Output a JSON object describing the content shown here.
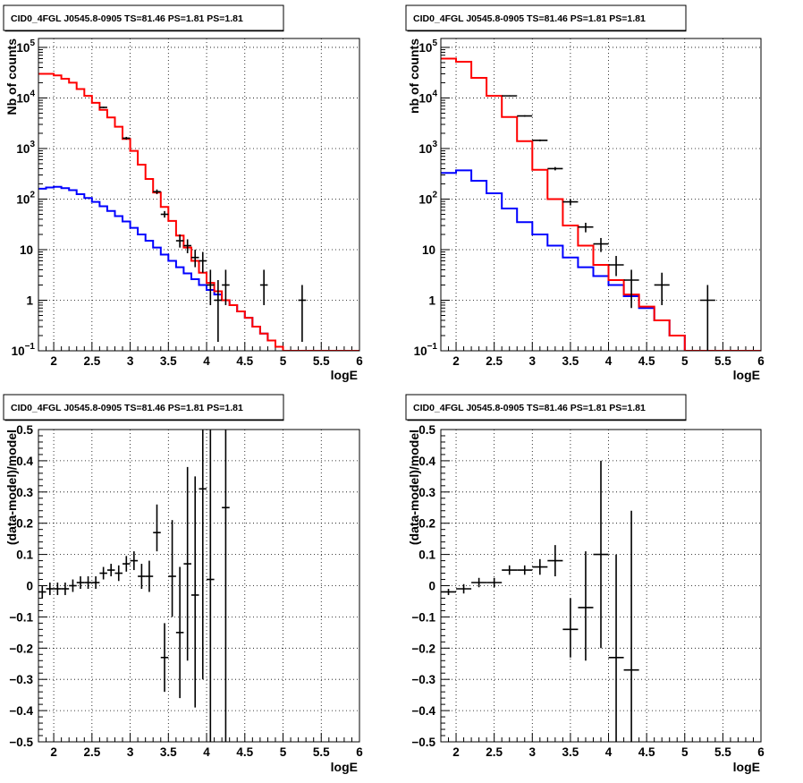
{
  "chart_data": [
    {
      "type": "line",
      "title": "CID0_4FGL J0545.8-0905 TS=81.46 PS=1.81 PS=1.81",
      "xlabel": "logE",
      "ylabel": "Nb of counts",
      "xlim": [
        1.8,
        6.0
      ],
      "ylim": [
        0.1,
        150000
      ],
      "yscale": "log",
      "grid": true,
      "x_ticks": [
        "2",
        "2.5",
        "3",
        "3.5",
        "4",
        "4.5",
        "5",
        "5.5",
        "6"
      ],
      "y_ticks": [
        {
          "value": 0.1,
          "base": "10",
          "exp": "−1"
        },
        {
          "value": 1,
          "label": "1"
        },
        {
          "value": 10,
          "label": "10"
        },
        {
          "value": 100,
          "base": "10",
          "exp": "2"
        },
        {
          "value": 1000,
          "base": "10",
          "exp": "3"
        },
        {
          "value": 10000,
          "base": "10",
          "exp": "4"
        },
        {
          "value": 100000,
          "base": "10",
          "exp": "5"
        }
      ],
      "bin_edges": [
        1.8,
        1.9,
        2.0,
        2.1,
        2.2,
        2.3,
        2.4,
        2.5,
        2.6,
        2.7,
        2.8,
        2.9,
        3.0,
        3.1,
        3.2,
        3.3,
        3.4,
        3.5,
        3.6,
        3.7,
        3.8,
        3.9,
        4.0,
        4.1,
        4.2,
        4.3,
        4.4,
        4.5,
        4.6,
        4.7,
        4.8,
        4.9,
        5.0,
        5.1,
        5.2,
        5.3,
        5.4,
        5.5,
        5.6,
        5.7,
        5.8,
        5.9,
        6.0
      ],
      "series": [
        {
          "role": "model_total",
          "color": "#ff0000",
          "values": [
            30000,
            30000,
            28000,
            24000,
            20000,
            15000,
            11000,
            8000,
            5800,
            4100,
            2700,
            1550,
            900,
            480,
            250,
            135,
            70,
            37,
            19,
            11,
            6,
            3.5,
            2.2,
            1.5,
            1.0,
            0.8,
            0.6,
            0.45,
            0.3,
            0.22,
            0.16,
            0.12,
            0.1,
            0.1,
            0.1,
            0.1,
            0.1,
            0.1,
            0.1,
            0.1,
            0.1,
            0.1
          ]
        },
        {
          "role": "model_component",
          "color": "#0000ff",
          "values": [
            160,
            170,
            175,
            165,
            150,
            125,
            105,
            88,
            72,
            58,
            46,
            36,
            27,
            20,
            15,
            11,
            8,
            6,
            4.5,
            3.4,
            2.6,
            2,
            1.6,
            1.3,
            1.0,
            0.8,
            0.6,
            0.45,
            0.3,
            0.22,
            0.16,
            0.12,
            0.1,
            0.1,
            0.1,
            0.1,
            0.1,
            0.1,
            0.1,
            0.1,
            0.1,
            0.1
          ]
        }
      ],
      "points": [
        {
          "x": 2.65,
          "y": 6500,
          "xerr": 0.05,
          "ylo": 6300,
          "yhi": 6700
        },
        {
          "x": 2.95,
          "y": 1600,
          "xerr": 0.05,
          "ylo": 1500,
          "yhi": 1700
        },
        {
          "x": 3.35,
          "y": 140,
          "xerr": 0.05,
          "ylo": 125,
          "yhi": 155
        },
        {
          "x": 3.45,
          "y": 50,
          "xerr": 0.05,
          "ylo": 43,
          "yhi": 58
        },
        {
          "x": 3.65,
          "y": 15,
          "xerr": 0.05,
          "ylo": 11,
          "yhi": 20
        },
        {
          "x": 3.75,
          "y": 12,
          "xerr": 0.05,
          "ylo": 8.5,
          "yhi": 16
        },
        {
          "x": 3.85,
          "y": 7,
          "xerr": 0.05,
          "ylo": 4.5,
          "yhi": 10
        },
        {
          "x": 3.95,
          "y": 6,
          "xerr": 0.05,
          "ylo": 3.5,
          "yhi": 9
        },
        {
          "x": 4.05,
          "y": 2,
          "xerr": 0.05,
          "ylo": 0.8,
          "yhi": 4
        },
        {
          "x": 4.15,
          "y": 1,
          "xerr": 0.05,
          "ylo": 0.15,
          "yhi": 2.5
        },
        {
          "x": 4.25,
          "y": 2,
          "xerr": 0.05,
          "ylo": 0.8,
          "yhi": 4
        },
        {
          "x": 4.75,
          "y": 2,
          "xerr": 0.05,
          "ylo": 0.8,
          "yhi": 4
        },
        {
          "x": 5.25,
          "y": 1,
          "xerr": 0.05,
          "ylo": 0.15,
          "yhi": 2
        }
      ]
    },
    {
      "type": "line",
      "title": "CID0_4FGL J0545.8-0905 TS=81.46 PS=1.81 PS=1.81",
      "xlabel": "logE",
      "ylabel": "nb of counts",
      "xlim": [
        1.8,
        6.0
      ],
      "ylim": [
        0.1,
        150000
      ],
      "yscale": "log",
      "grid": true,
      "x_ticks": [
        "2",
        "2.5",
        "3",
        "3.5",
        "4",
        "4.5",
        "5",
        "5.5",
        "6"
      ],
      "y_ticks": [
        {
          "value": 0.1,
          "base": "10",
          "exp": "−1"
        },
        {
          "value": 1,
          "label": "1"
        },
        {
          "value": 10,
          "label": "10"
        },
        {
          "value": 100,
          "base": "10",
          "exp": "2"
        },
        {
          "value": 1000,
          "base": "10",
          "exp": "3"
        },
        {
          "value": 10000,
          "base": "10",
          "exp": "4"
        },
        {
          "value": 100000,
          "base": "10",
          "exp": "5"
        }
      ],
      "bin_edges": [
        1.8,
        2.0,
        2.2,
        2.4,
        2.6,
        2.8,
        3.0,
        3.2,
        3.4,
        3.6,
        3.8,
        4.0,
        4.2,
        4.4,
        4.6,
        4.8,
        5.0,
        5.2,
        5.4,
        5.6,
        5.8,
        6.0
      ],
      "series": [
        {
          "role": "model_total",
          "color": "#ff0000",
          "values": [
            60000,
            52000,
            25000,
            11000,
            4200,
            1400,
            380,
            100,
            30,
            12,
            5,
            2.5,
            1.3,
            0.75,
            0.4,
            0.2,
            0.1,
            0.1,
            0.1,
            0.1,
            0.1
          ]
        },
        {
          "role": "model_component",
          "color": "#0000ff",
          "values": [
            330,
            370,
            230,
            130,
            65,
            35,
            20,
            12,
            7,
            4.5,
            3,
            2,
            1.2,
            0.7,
            0.4,
            0.2,
            0.1,
            0.1,
            0.1,
            0.1,
            0.1
          ]
        }
      ],
      "points": [
        {
          "x": 2.7,
          "y": 11000,
          "xerr": 0.1,
          "ylo": 10700,
          "yhi": 11300
        },
        {
          "x": 2.9,
          "y": 4400,
          "xerr": 0.1,
          "ylo": 4250,
          "yhi": 4550
        },
        {
          "x": 3.1,
          "y": 1450,
          "xerr": 0.1,
          "ylo": 1390,
          "yhi": 1510
        },
        {
          "x": 3.3,
          "y": 400,
          "xerr": 0.1,
          "ylo": 370,
          "yhi": 430
        },
        {
          "x": 3.5,
          "y": 88,
          "xerr": 0.1,
          "ylo": 75,
          "yhi": 100
        },
        {
          "x": 3.7,
          "y": 28,
          "xerr": 0.1,
          "ylo": 22,
          "yhi": 34
        },
        {
          "x": 3.9,
          "y": 13,
          "xerr": 0.1,
          "ylo": 9,
          "yhi": 17
        },
        {
          "x": 4.1,
          "y": 5,
          "xerr": 0.1,
          "ylo": 3,
          "yhi": 7.5
        },
        {
          "x": 4.3,
          "y": 2.5,
          "xerr": 0.1,
          "ylo": 0.7,
          "yhi": 4
        },
        {
          "x": 4.7,
          "y": 2,
          "xerr": 0.1,
          "ylo": 0.8,
          "yhi": 3.5
        },
        {
          "x": 5.3,
          "y": 1,
          "xerr": 0.1,
          "ylo": 0.1,
          "yhi": 2
        }
      ]
    },
    {
      "type": "scatter",
      "title": "CID0_4FGL J0545.8-0905 TS=81.46 PS=1.81 PS=1.81",
      "xlabel": "logE",
      "ylabel": "(data-model)/model",
      "xlim": [
        1.8,
        6.0
      ],
      "ylim": [
        -0.5,
        0.5
      ],
      "grid": true,
      "x_ticks": [
        "2",
        "2.5",
        "3",
        "3.5",
        "4",
        "4.5",
        "5",
        "5.5",
        "6"
      ],
      "y_ticks": [
        "−0.5",
        "−0.4",
        "−0.3",
        "−0.2",
        "−0.1",
        "0",
        "0.1",
        "0.2",
        "0.3",
        "0.4",
        "0.5"
      ],
      "points": [
        {
          "x": 1.85,
          "y": -0.02,
          "xerr": 0.05,
          "ylo": -0.04,
          "yhi": 0.0
        },
        {
          "x": 1.95,
          "y": -0.01,
          "xerr": 0.05,
          "ylo": -0.03,
          "yhi": 0.01
        },
        {
          "x": 2.05,
          "y": -0.01,
          "xerr": 0.05,
          "ylo": -0.03,
          "yhi": 0.01
        },
        {
          "x": 2.15,
          "y": -0.01,
          "xerr": 0.05,
          "ylo": -0.03,
          "yhi": 0.01
        },
        {
          "x": 2.25,
          "y": 0.0,
          "xerr": 0.05,
          "ylo": -0.02,
          "yhi": 0.02
        },
        {
          "x": 2.35,
          "y": 0.01,
          "xerr": 0.05,
          "ylo": -0.01,
          "yhi": 0.03
        },
        {
          "x": 2.45,
          "y": 0.01,
          "xerr": 0.05,
          "ylo": -0.01,
          "yhi": 0.03
        },
        {
          "x": 2.55,
          "y": 0.01,
          "xerr": 0.05,
          "ylo": -0.01,
          "yhi": 0.03
        },
        {
          "x": 2.65,
          "y": 0.04,
          "xerr": 0.05,
          "ylo": 0.02,
          "yhi": 0.06
        },
        {
          "x": 2.75,
          "y": 0.05,
          "xerr": 0.05,
          "ylo": 0.03,
          "yhi": 0.07
        },
        {
          "x": 2.85,
          "y": 0.04,
          "xerr": 0.05,
          "ylo": 0.015,
          "yhi": 0.065
        },
        {
          "x": 2.95,
          "y": 0.07,
          "xerr": 0.05,
          "ylo": 0.045,
          "yhi": 0.095
        },
        {
          "x": 3.05,
          "y": 0.08,
          "xerr": 0.05,
          "ylo": 0.05,
          "yhi": 0.11
        },
        {
          "x": 3.15,
          "y": 0.03,
          "xerr": 0.05,
          "ylo": -0.01,
          "yhi": 0.07
        },
        {
          "x": 3.25,
          "y": 0.03,
          "xerr": 0.05,
          "ylo": -0.02,
          "yhi": 0.08
        },
        {
          "x": 3.35,
          "y": 0.17,
          "xerr": 0.05,
          "ylo": 0.11,
          "yhi": 0.26
        },
        {
          "x": 3.45,
          "y": -0.23,
          "xerr": 0.05,
          "ylo": -0.34,
          "yhi": -0.12
        },
        {
          "x": 3.55,
          "y": 0.03,
          "xerr": 0.05,
          "ylo": -0.1,
          "yhi": 0.21
        },
        {
          "x": 3.65,
          "y": -0.15,
          "xerr": 0.05,
          "ylo": -0.36,
          "yhi": 0.06
        },
        {
          "x": 3.75,
          "y": 0.07,
          "xerr": 0.05,
          "ylo": -0.24,
          "yhi": 0.38
        },
        {
          "x": 3.85,
          "y": -0.03,
          "xerr": 0.05,
          "ylo": -0.39,
          "yhi": 0.35
        },
        {
          "x": 3.95,
          "y": 0.31,
          "xerr": 0.05,
          "ylo": -0.3,
          "yhi": 0.5
        },
        {
          "x": 4.05,
          "y": 0.02,
          "xerr": 0.05,
          "ylo": -0.5,
          "yhi": 0.5
        },
        {
          "x": 4.25,
          "y": 0.25,
          "xerr": 0.05,
          "ylo": -0.5,
          "yhi": 0.5
        }
      ]
    },
    {
      "type": "scatter",
      "title": "CID0_4FGL J0545.8-0905 TS=81.46 PS=1.81 PS=1.81",
      "xlabel": "logE",
      "ylabel": "(data-model)/model",
      "xlim": [
        1.8,
        6.0
      ],
      "ylim": [
        -0.5,
        0.5
      ],
      "grid": true,
      "x_ticks": [
        "2",
        "2.5",
        "3",
        "3.5",
        "4",
        "4.5",
        "5",
        "5.5",
        "6"
      ],
      "y_ticks": [
        "−0.5",
        "−0.4",
        "−0.3",
        "−0.2",
        "−0.1",
        "0",
        "0.1",
        "0.2",
        "0.3",
        "0.4",
        "0.5"
      ],
      "points": [
        {
          "x": 1.9,
          "y": -0.02,
          "xerr": 0.1,
          "ylo": -0.03,
          "yhi": -0.01
        },
        {
          "x": 2.1,
          "y": -0.01,
          "xerr": 0.1,
          "ylo": -0.025,
          "yhi": 0.005
        },
        {
          "x": 2.3,
          "y": 0.01,
          "xerr": 0.1,
          "ylo": -0.005,
          "yhi": 0.025
        },
        {
          "x": 2.5,
          "y": 0.01,
          "xerr": 0.1,
          "ylo": -0.005,
          "yhi": 0.025
        },
        {
          "x": 2.7,
          "y": 0.05,
          "xerr": 0.1,
          "ylo": 0.035,
          "yhi": 0.065
        },
        {
          "x": 2.9,
          "y": 0.05,
          "xerr": 0.1,
          "ylo": 0.035,
          "yhi": 0.065
        },
        {
          "x": 3.1,
          "y": 0.06,
          "xerr": 0.1,
          "ylo": 0.035,
          "yhi": 0.085
        },
        {
          "x": 3.3,
          "y": 0.08,
          "xerr": 0.1,
          "ylo": 0.03,
          "yhi": 0.13
        },
        {
          "x": 3.5,
          "y": -0.14,
          "xerr": 0.1,
          "ylo": -0.23,
          "yhi": -0.04
        },
        {
          "x": 3.7,
          "y": -0.07,
          "xerr": 0.1,
          "ylo": -0.24,
          "yhi": 0.11
        },
        {
          "x": 3.9,
          "y": 0.1,
          "xerr": 0.1,
          "ylo": -0.2,
          "yhi": 0.4
        },
        {
          "x": 4.1,
          "y": -0.23,
          "xerr": 0.1,
          "ylo": -0.5,
          "yhi": 0.1
        },
        {
          "x": 4.3,
          "y": -0.27,
          "xerr": 0.1,
          "ylo": -0.5,
          "yhi": 0.24
        }
      ]
    }
  ]
}
